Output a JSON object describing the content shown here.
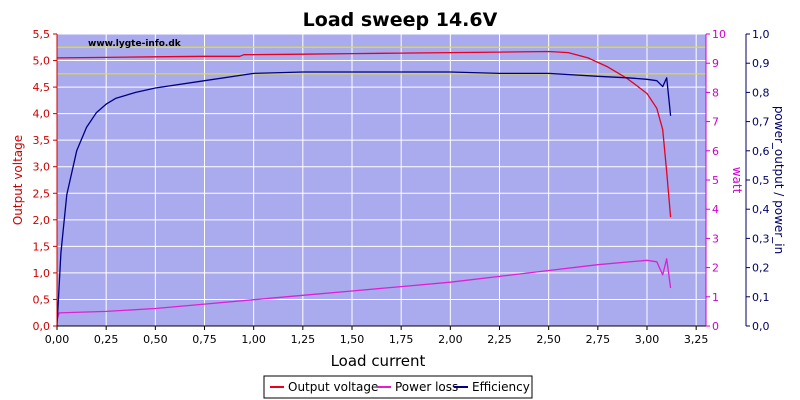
{
  "chart_data": {
    "type": "line",
    "title": "Load sweep 14.6V",
    "watermark": "www.lygte-info.dk",
    "xlabel": "Load current",
    "ylabel_left": "Output voltage",
    "ylabel_right1": "watt",
    "ylabel_right2": "power_output / power_in",
    "xlim": [
      0,
      3.3
    ],
    "ylim_left": [
      0,
      5.5
    ],
    "ylim_right1": [
      0,
      10
    ],
    "ylim_right2": [
      0,
      1
    ],
    "x_ticks": [
      "0,00",
      "0,25",
      "0,50",
      "0,75",
      "1,00",
      "1,25",
      "1,50",
      "1,75",
      "2,00",
      "2,25",
      "2,50",
      "2,75",
      "3,00",
      "3,25"
    ],
    "y_left_ticks": [
      "0,0",
      "0,5",
      "1,0",
      "1,5",
      "2,0",
      "2,5",
      "3,0",
      "3,5",
      "4,0",
      "4,5",
      "5,0",
      "5,5"
    ],
    "y_right1_ticks": [
      "0",
      "1",
      "2",
      "3",
      "4",
      "5",
      "6",
      "7",
      "8",
      "9",
      "10"
    ],
    "y_right2_ticks": [
      "0,0",
      "0,1",
      "0,2",
      "0,3",
      "0,4",
      "0,5",
      "0,6",
      "0,7",
      "0,8",
      "0,9",
      "1,0"
    ],
    "reference_lines_left": [
      5.25,
      4.75
    ],
    "grid": true,
    "legend_position": "bottom-center",
    "colors": {
      "plot_bg": "#aaaaee",
      "grid": "#ffffff",
      "reference": "#e6e600",
      "voltage": "#e8001c",
      "power": "#e020d0",
      "efficiency": "#000080",
      "left_axis": "#cc0000",
      "right1_axis": "#cc00cc",
      "right2_axis": "#000066"
    },
    "series": [
      {
        "name": "Output voltage",
        "axis": "left",
        "x": [
          0,
          0.25,
          0.5,
          0.75,
          0.93,
          0.95,
          1.25,
          1.5,
          1.75,
          2.0,
          2.25,
          2.5,
          2.6,
          2.7,
          2.8,
          2.9,
          2.95,
          3.0,
          3.05,
          3.08,
          3.1,
          3.12
        ],
        "values": [
          5.05,
          5.06,
          5.07,
          5.08,
          5.08,
          5.11,
          5.12,
          5.13,
          5.14,
          5.15,
          5.16,
          5.17,
          5.15,
          5.05,
          4.88,
          4.66,
          4.52,
          4.38,
          4.1,
          3.7,
          2.9,
          2.05
        ]
      },
      {
        "name": "Power loss",
        "axis": "right1",
        "x": [
          0,
          0.01,
          0.25,
          0.5,
          0.75,
          1.0,
          1.25,
          1.5,
          1.75,
          2.0,
          2.25,
          2.5,
          2.75,
          3.0,
          3.05,
          3.08,
          3.1,
          3.12
        ],
        "values": [
          0.2,
          0.45,
          0.5,
          0.6,
          0.75,
          0.9,
          1.05,
          1.2,
          1.35,
          1.5,
          1.7,
          1.9,
          2.1,
          2.25,
          2.2,
          1.75,
          2.3,
          1.3
        ]
      },
      {
        "name": "Efficiency",
        "axis": "right2",
        "x": [
          0,
          0.02,
          0.05,
          0.1,
          0.15,
          0.2,
          0.25,
          0.3,
          0.4,
          0.5,
          0.75,
          1.0,
          1.25,
          1.5,
          1.75,
          2.0,
          2.25,
          2.5,
          2.75,
          2.9,
          3.0,
          3.05,
          3.08,
          3.1,
          3.12
        ],
        "values": [
          0.0,
          0.25,
          0.45,
          0.6,
          0.68,
          0.73,
          0.76,
          0.78,
          0.8,
          0.815,
          0.84,
          0.865,
          0.87,
          0.87,
          0.87,
          0.87,
          0.865,
          0.865,
          0.855,
          0.85,
          0.845,
          0.84,
          0.82,
          0.85,
          0.72
        ]
      }
    ]
  }
}
